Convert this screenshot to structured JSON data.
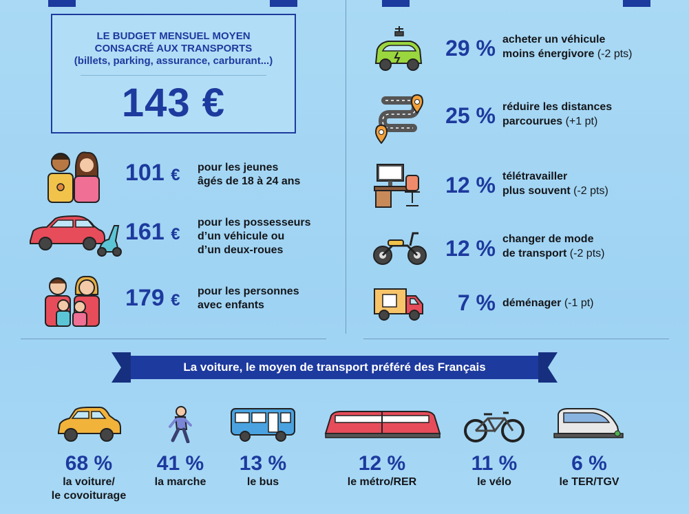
{
  "budget": {
    "title_line1": "LE BUDGET MENSUEL MOYEN",
    "title_line2": "CONSACRÉ AUX TRANSPORTS",
    "subtitle": "(billets, parking, assurance, carburant...)",
    "value": "143 €"
  },
  "segments": [
    {
      "icon": "young-people-icon",
      "value": "101",
      "currency": "€",
      "line1": "pour les jeunes",
      "line2": "âgés de 18 à 24 ans",
      "line3": ""
    },
    {
      "icon": "car-scooter-icon",
      "value": "161",
      "currency": "€",
      "line1": "pour les possesseurs",
      "line2": "d’un véhicule ou",
      "line3": "d’un deux-roues"
    },
    {
      "icon": "family-icon",
      "value": "179",
      "currency": "€",
      "line1": "pour les personnes",
      "line2": "avec enfants",
      "line3": ""
    }
  ],
  "actions": [
    {
      "icon": "electric-car-icon",
      "pct": "29 %",
      "line1": "acheter un véhicule",
      "line2": "moins énergivore",
      "note": "(-2 pts)"
    },
    {
      "icon": "road-route-icon",
      "pct": "25 %",
      "line1": "réduire les distances",
      "line2": "parcourues",
      "note": "(+1 pt)"
    },
    {
      "icon": "home-office-icon",
      "pct": "12 %",
      "line1": "télétravailler",
      "line2": "plus souvent",
      "note": "(-2 pts)"
    },
    {
      "icon": "moped-icon",
      "pct": "12 %",
      "line1": "changer de mode",
      "line2": "de transport",
      "note": "(-2 pts)"
    },
    {
      "icon": "moving-truck-icon",
      "pct": "7 %",
      "line1": "déménager",
      "line2": "",
      "note": "(-1 pt)"
    }
  ],
  "banner": "La voiture, le moyen de transport préféré des Français",
  "modes": [
    {
      "icon": "car-icon",
      "pct": "68 %",
      "line1": "la voiture/",
      "line2": "le covoiturage"
    },
    {
      "icon": "walking-icon",
      "pct": "41 %",
      "line1": "la marche",
      "line2": ""
    },
    {
      "icon": "bus-icon",
      "pct": "13 %",
      "line1": "le bus",
      "line2": ""
    },
    {
      "icon": "metro-icon",
      "pct": "12 %",
      "line1": "le métro/RER",
      "line2": ""
    },
    {
      "icon": "bicycle-icon",
      "pct": "11 %",
      "line1": "le vélo",
      "line2": ""
    },
    {
      "icon": "train-icon",
      "pct": "6 %",
      "line1": "le TER/TGV",
      "line2": ""
    }
  ],
  "colors": {
    "accent": "#1d3a9e",
    "background": "#a9d9f4"
  }
}
